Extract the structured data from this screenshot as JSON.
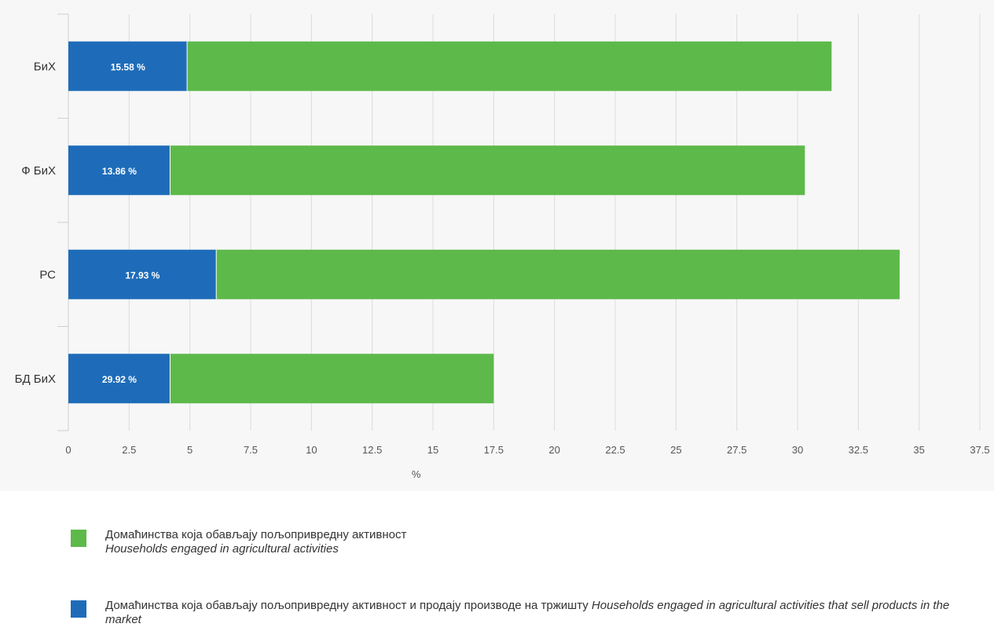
{
  "chart_data": {
    "type": "bar",
    "orientation": "horizontal",
    "stacked": true,
    "categories": [
      "БиХ",
      "Ф БиХ",
      "РС",
      "БД БиХ"
    ],
    "series": [
      {
        "name": "Домаћинства која обављају пољопривредну активност и продају производе на тржишту Households engaged in agricultural activities that sell products in the market",
        "color": "#1e6cb9",
        "values": [
          4.9,
          4.2,
          6.1,
          4.2
        ],
        "labels": [
          "15.58 %",
          "13.86 %",
          "17.93 %",
          "29.92 %"
        ]
      },
      {
        "name": "Домаћинства која обављају пољопривредну активност Households engaged in agricultural activities",
        "color": "#5db94a",
        "values": [
          26.5,
          26.1,
          28.1,
          13.3
        ]
      }
    ],
    "xlabel": "%",
    "ylabel": "",
    "xlim": [
      0,
      37.5
    ],
    "xticks": [
      "0",
      "2.5",
      "5",
      "7.5",
      "10",
      "12.5",
      "15",
      "17.5",
      "20",
      "22.5",
      "25",
      "27.5",
      "30",
      "32.5",
      "35",
      "37.5"
    ],
    "grid": "vertical",
    "legend": "bottom"
  },
  "legend": {
    "items": [
      {
        "color": "#5db94a",
        "text_sr": "Домаћинства која обављају пољопривредну активност",
        "text_en": "Households engaged in agricultural activities"
      },
      {
        "color": "#1e6cb9",
        "text_sr": "Домаћинства која обављају пољопривредну активност и продају производе на тржишту",
        "text_en": "Households engaged in agricultural activities that sell products in the market"
      }
    ]
  }
}
